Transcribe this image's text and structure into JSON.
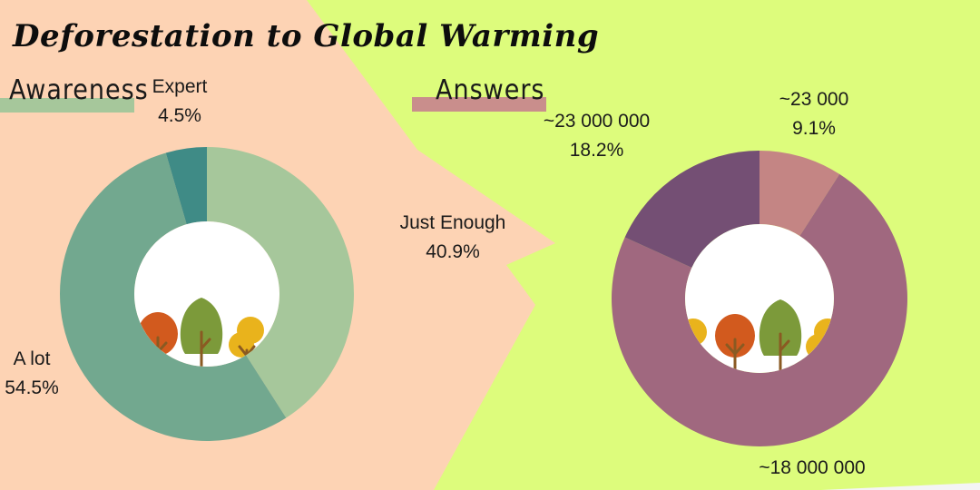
{
  "title": "Deforestation to Global Warming",
  "colors": {
    "background_left": "#fdd3b4",
    "background_right": "#ddfc7c"
  },
  "sections": {
    "awareness": {
      "label": "Awareness",
      "bar_color": "#a6c79b"
    },
    "answers": {
      "label": "Answers",
      "bar_color": "#c98e8c"
    }
  },
  "chart_data": [
    {
      "type": "pie",
      "variant": "donut",
      "title": "Awareness",
      "slices": [
        {
          "label": "Just Enough",
          "value": 40.9,
          "value_label": "40.9%",
          "color": "#a6c79b"
        },
        {
          "label": "A lot",
          "value": 54.5,
          "value_label": "54.5%",
          "color": "#72a88f"
        },
        {
          "label": "Expert",
          "value": 4.5,
          "value_label": "4.5%",
          "color": "#3f8b86"
        }
      ]
    },
    {
      "type": "pie",
      "variant": "donut",
      "title": "Answers",
      "slices": [
        {
          "label": "~23 000",
          "value": 9.1,
          "value_label": "9.1%",
          "color": "#c48584"
        },
        {
          "label": "~18 000 000",
          "value": 72.7,
          "value_label": "",
          "color": "#a0687f"
        },
        {
          "label": "~23 000 000",
          "value": 18.2,
          "value_label": "18.2%",
          "color": "#744f74"
        }
      ]
    }
  ],
  "decorations": {
    "left_trees": [
      "orange-tree-icon",
      "green-tree-icon",
      "yellow-tree-icon"
    ],
    "right_trees": [
      "yellow-tree-icon",
      "orange-tree-icon",
      "green-tree-icon",
      "yellow-tree-icon"
    ]
  }
}
